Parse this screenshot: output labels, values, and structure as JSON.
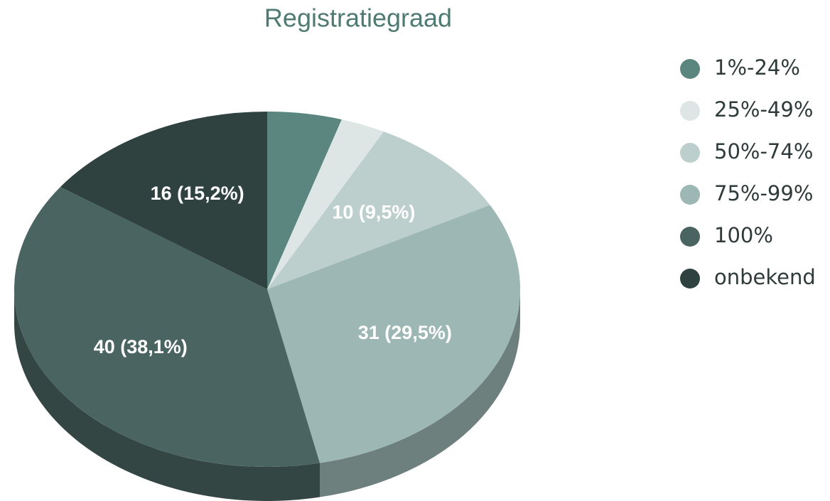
{
  "chart_data": {
    "type": "pie3d",
    "title": "Registratiegraad",
    "categories": [
      "1%-24%",
      "25%-49%",
      "50%-74%",
      "75%-99%",
      "100%",
      "onbekend"
    ],
    "values": [
      5,
      3,
      10,
      31,
      40,
      16
    ],
    "value_labels": [
      null,
      null,
      "10 (9,5%)",
      "31 (29,5%)",
      "40 (38,1%)",
      "16 (15,2%)"
    ],
    "colors": [
      "#5b857f",
      "#dde6e4",
      "#bccfcc",
      "#9db7b4",
      "#4a6461",
      "#2f4240"
    ],
    "legend": "right"
  }
}
